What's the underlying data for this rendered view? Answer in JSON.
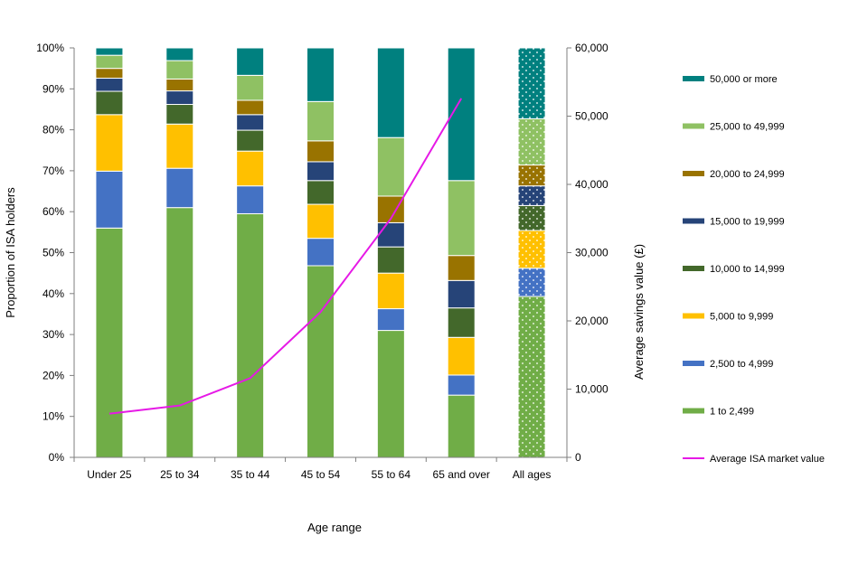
{
  "chart_data": {
    "type": "bar",
    "stacked": true,
    "title": "",
    "xlabel": "Age range",
    "ylabel": "Proportion of ISA holders",
    "y2label": "Average  savings value (£)",
    "ylim": [
      0,
      100
    ],
    "y2lim": [
      0,
      60000
    ],
    "yticks": [
      "0%",
      "10%",
      "20%",
      "30%",
      "40%",
      "50%",
      "60%",
      "70%",
      "80%",
      "90%",
      "100%"
    ],
    "y2ticks": [
      "0",
      "10,000",
      "20,000",
      "30,000",
      "40,000",
      "50,000",
      "60,000"
    ],
    "categories": [
      "Under 25",
      "25 to 34",
      "35 to 44",
      "45 to 54",
      "55 to 64",
      "65 and over",
      "All ages"
    ],
    "pattern_categories": [
      "All ages"
    ],
    "grid": false,
    "legend_position": "right",
    "series": [
      {
        "name": "1 to 2,499",
        "color": "#70AD47",
        "values": [
          56,
          61,
          59.5,
          46.8,
          31,
          15.2,
          39.3
        ]
      },
      {
        "name": "2,500 to 4,999",
        "color": "#4472C4",
        "values": [
          13.9,
          9.6,
          6.8,
          6.7,
          5.3,
          4.9,
          6.9
        ]
      },
      {
        "name": "5,000 to 9,999",
        "color": "#FFC000",
        "values": [
          13.8,
          10.8,
          8.5,
          8.3,
          8.7,
          9.2,
          9.2
        ]
      },
      {
        "name": "10,000 to 14,999",
        "color": "#43682B",
        "values": [
          5.7,
          4.8,
          5.1,
          5.8,
          6.4,
          7.2,
          6.1
        ]
      },
      {
        "name": "15,000 to 19,999",
        "color": "#264478",
        "values": [
          3.2,
          3.3,
          3.8,
          4.6,
          5.9,
          6.7,
          4.8
        ]
      },
      {
        "name": "20,000 to 24,999",
        "color": "#997300",
        "values": [
          2.4,
          2.9,
          3.5,
          5.1,
          6.5,
          6.1,
          5.1
        ]
      },
      {
        "name": "25,000 to 49,999",
        "color": "#8FC163",
        "values": [
          3.2,
          4.5,
          6.1,
          9.6,
          14.3,
          18.3,
          11.3
        ]
      },
      {
        "name": "50,000 or more",
        "color": "#00807F",
        "values": [
          1.8,
          3.1,
          6.7,
          13.1,
          21.9,
          32.4,
          17.3
        ]
      }
    ],
    "line_series": {
      "name": "Average ISA market value",
      "color": "#E619E6",
      "axis": "right",
      "values": [
        6400,
        7600,
        11600,
        21300,
        35000,
        52600
      ]
    }
  }
}
